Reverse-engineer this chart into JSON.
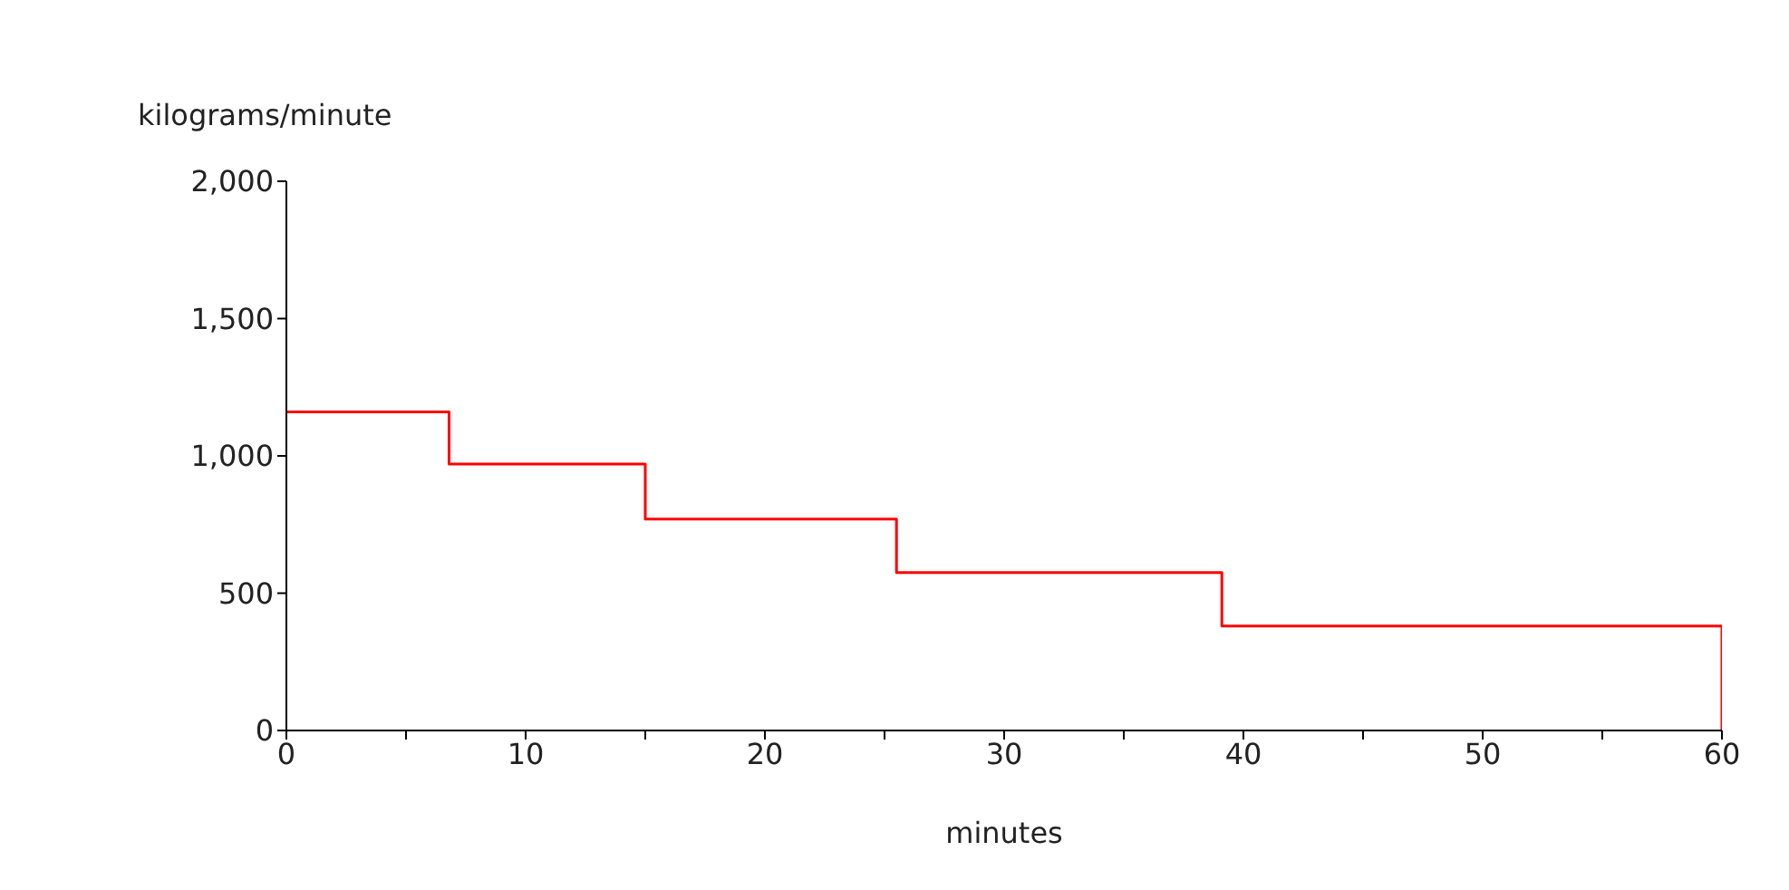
{
  "chart_data": {
    "type": "step",
    "xlabel": "minutes",
    "ylabel": "kilograms/minute",
    "x": [
      0,
      6.8,
      15,
      25.5,
      39.1,
      60
    ],
    "series": [
      {
        "color": "#ff0000",
        "values": [
          1160,
          970,
          770,
          575,
          380,
          0
        ]
      }
    ],
    "xlim": [
      0,
      60
    ],
    "xticks": [
      0,
      {
        "value": 5,
        "label": null
      },
      10,
      {
        "value": 15,
        "label": null
      },
      20,
      {
        "value": 25,
        "label": null
      },
      30,
      {
        "value": 35,
        "label": null
      },
      40,
      {
        "value": 45,
        "label": null
      },
      50,
      {
        "value": 55,
        "label": null
      },
      60
    ],
    "ylim": [
      0,
      2000
    ],
    "yticks": [
      0,
      500,
      {
        "value": 1000,
        "label": "1,000"
      },
      {
        "value": 1500,
        "label": "1,500"
      },
      {
        "value": 2000,
        "label": "2,000"
      }
    ],
    "grid": false,
    "legend": false,
    "marker": "none",
    "line_style": "solid"
  }
}
